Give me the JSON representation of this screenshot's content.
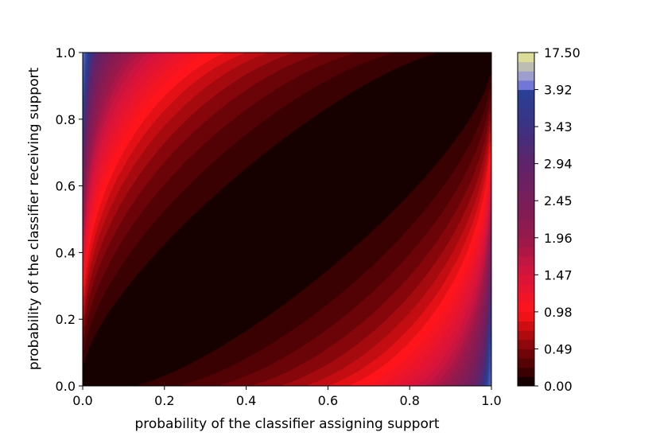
{
  "chart_data": {
    "type": "heatmap",
    "subtype": "filled-contour",
    "title": "",
    "xlabel": "probability of the classifier assigning support",
    "ylabel": "probability of the classifier receiving support",
    "xlim": [
      0.0,
      1.0
    ],
    "ylim": [
      0.0,
      1.0
    ],
    "x_ticks": [
      "0.0",
      "0.2",
      "0.4",
      "0.6",
      "0.8",
      "1.0"
    ],
    "y_ticks": [
      "0.0",
      "0.2",
      "0.4",
      "0.6",
      "0.8",
      "1.0"
    ],
    "grid": false,
    "colorbar": {
      "ticks": [
        "0.00",
        "0.49",
        "0.98",
        "1.47",
        "1.96",
        "2.45",
        "2.94",
        "3.43",
        "3.92",
        "17.50"
      ],
      "tick_values": [
        0.0,
        0.49,
        0.98,
        1.47,
        1.96,
        2.45,
        2.94,
        3.43,
        3.92,
        17.5
      ],
      "min": 0.0,
      "max": 17.5,
      "colors": {
        "zero": "#000000",
        "low": "#8b0000",
        "mid": "#ff1a1a",
        "high": "#7a2a66",
        "top": "#2a3f8f",
        "extreme": "#e6e68a"
      }
    },
    "features": {
      "zero_ridge": "diagonal black band where receiving support ≈ assigning support",
      "peak_region": "top-left corner (low assigning, high receiving) with values up to 17.50",
      "secondary_region": "bottom-right (high assigning, low receiving) dark red"
    }
  }
}
